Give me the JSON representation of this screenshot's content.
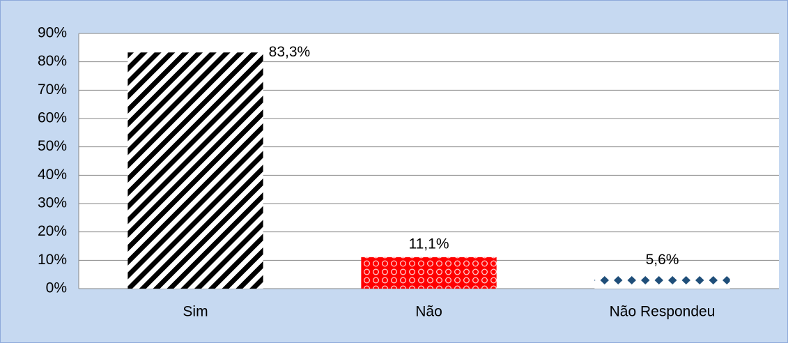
{
  "chart_data": {
    "type": "bar",
    "categories": [
      "Sim",
      "Não",
      "Não Respondeu"
    ],
    "values": [
      83.3,
      11.1,
      5.6
    ],
    "value_labels": [
      "83,3%",
      "11,1%",
      "5,6%"
    ],
    "colors": [
      "#000000",
      "#ff0000",
      "#1f4e79"
    ],
    "ylim": [
      0,
      90
    ],
    "yticks": [
      {
        "value": 0,
        "label": "0%"
      },
      {
        "value": 10,
        "label": "10%"
      },
      {
        "value": 20,
        "label": "20%"
      },
      {
        "value": 30,
        "label": "30%"
      },
      {
        "value": 40,
        "label": "40%"
      },
      {
        "value": 50,
        "label": "50%"
      },
      {
        "value": 60,
        "label": "60%"
      },
      {
        "value": 70,
        "label": "70%"
      },
      {
        "value": 80,
        "label": "80%"
      },
      {
        "value": 90,
        "label": "90%"
      }
    ],
    "grid": true
  }
}
